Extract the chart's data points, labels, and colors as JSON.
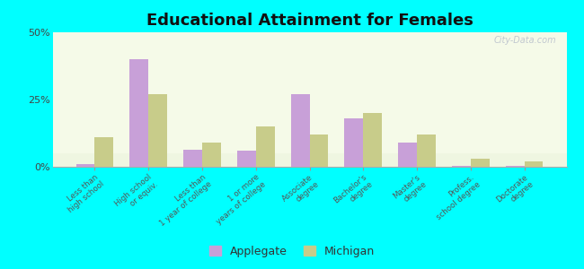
{
  "title": "Educational Attainment for Females",
  "categories": [
    "Less than\nhigh school",
    "High school\nor equiv.",
    "Less than\n1 year of college",
    "1 or more\nyears of college",
    "Associate\ndegree",
    "Bachelor's\ndegree",
    "Master's\ndegree",
    "Profess.\nschool degree",
    "Doctorate\ndegree"
  ],
  "applegate": [
    1.0,
    40.0,
    6.5,
    6.0,
    27.0,
    18.0,
    9.0,
    0.5,
    0.2
  ],
  "michigan": [
    11.0,
    27.0,
    9.0,
    15.0,
    12.0,
    20.0,
    12.0,
    3.0,
    2.0
  ],
  "applegate_color": "#c8a0d8",
  "michigan_color": "#c8cc8a",
  "background_color": "#00ffff",
  "plot_bg_color": "#eef5e0",
  "ylim": [
    0,
    50
  ],
  "yticks": [
    0,
    25,
    50
  ],
  "ytick_labels": [
    "0%",
    "25%",
    "50%"
  ],
  "legend_applegate": "Applegate",
  "legend_michigan": "Michigan",
  "bar_width": 0.35,
  "watermark": "City-Data.com"
}
